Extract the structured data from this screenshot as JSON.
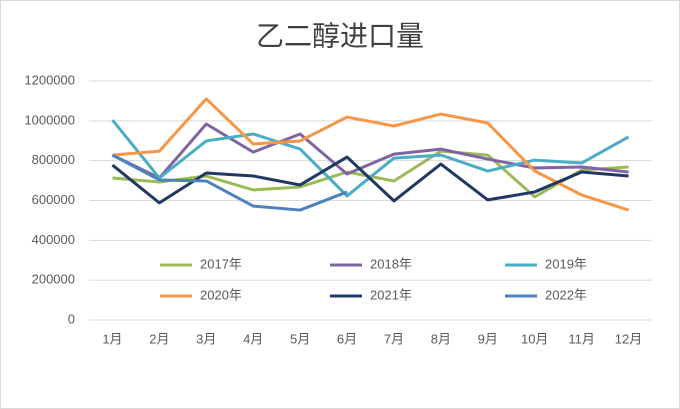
{
  "chart_data": {
    "type": "line",
    "title": "乙二醇进口量",
    "categories": [
      "1月",
      "2月",
      "3月",
      "4月",
      "5月",
      "6月",
      "7月",
      "8月",
      "9月",
      "10月",
      "11月",
      "12月"
    ],
    "series": [
      {
        "name": "2017年",
        "color": "#9bbb59",
        "values": [
          713000,
          693000,
          723000,
          653000,
          668000,
          743000,
          698000,
          848000,
          828000,
          618000,
          753000,
          768000
        ]
      },
      {
        "name": "2018年",
        "color": "#8064a2",
        "values": [
          828000,
          713000,
          984000,
          843000,
          934000,
          733000,
          833000,
          858000,
          808000,
          763000,
          768000,
          743000
        ]
      },
      {
        "name": "2019年",
        "color": "#4bacc6",
        "values": [
          1004000,
          713000,
          899000,
          934000,
          858000,
          623000,
          813000,
          828000,
          748000,
          803000,
          788000,
          919000
        ]
      },
      {
        "name": "2020年",
        "color": "#f79646",
        "values": [
          828000,
          848000,
          1110000,
          884000,
          899000,
          1019000,
          974000,
          1034000,
          989000,
          748000,
          628000,
          552000
        ]
      },
      {
        "name": "2021年",
        "color": "#1f3864",
        "values": [
          778000,
          588000,
          738000,
          723000,
          678000,
          818000,
          598000,
          783000,
          603000,
          643000,
          743000,
          723000
        ]
      },
      {
        "name": "2022年",
        "color": "#4f81bd",
        "values": [
          828000,
          703000,
          698000,
          572000,
          552000,
          643000,
          null,
          null,
          null,
          null,
          null,
          null
        ]
      }
    ],
    "ylim": [
      0,
      1200000
    ],
    "yticks": [
      0,
      200000,
      400000,
      600000,
      800000,
      1000000,
      1200000
    ],
    "grid": true
  }
}
